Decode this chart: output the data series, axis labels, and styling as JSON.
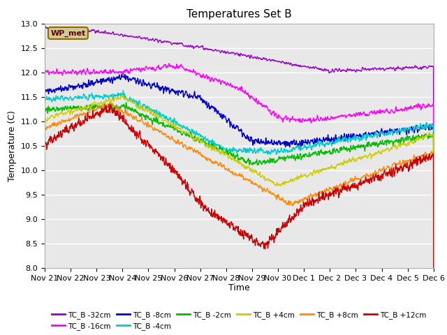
{
  "title": "Temperatures Set B",
  "xlabel": "Time",
  "ylabel": "Temperature (C)",
  "ylim": [
    8.0,
    13.0
  ],
  "yticks": [
    8.0,
    8.5,
    9.0,
    9.5,
    10.0,
    10.5,
    11.0,
    11.5,
    12.0,
    12.5,
    13.0
  ],
  "bg_color": "#e8e8e8",
  "fig_color": "#ffffff",
  "series": [
    {
      "label": "TC_B -32cm",
      "color": "#9900cc"
    },
    {
      "label": "TC_B -16cm",
      "color": "#ff00ff"
    },
    {
      "label": "TC_B -8cm",
      "color": "#0000cc"
    },
    {
      "label": "TC_B -4cm",
      "color": "#00cccc"
    },
    {
      "label": "TC_B -2cm",
      "color": "#00bb00"
    },
    {
      "label": "TC_B +4cm",
      "color": "#cccc00"
    },
    {
      "label": "TC_B +8cm",
      "color": "#ff8800"
    },
    {
      "label": "TC_B +12cm",
      "color": "#cc0000"
    }
  ],
  "wp_met_box_color": "#cccc99",
  "wp_met_text_color": "#660000",
  "x_tick_labels": [
    "Nov 21",
    "Nov 22",
    "Nov 23",
    "Nov 24",
    "Nov 25",
    "Nov 26",
    "Nov 27",
    "Nov 28",
    "Nov 29",
    "Nov 30",
    "Dec 1",
    "Dec 2",
    "Dec 3",
    "Dec 4",
    "Dec 5",
    "Dec 6"
  ]
}
